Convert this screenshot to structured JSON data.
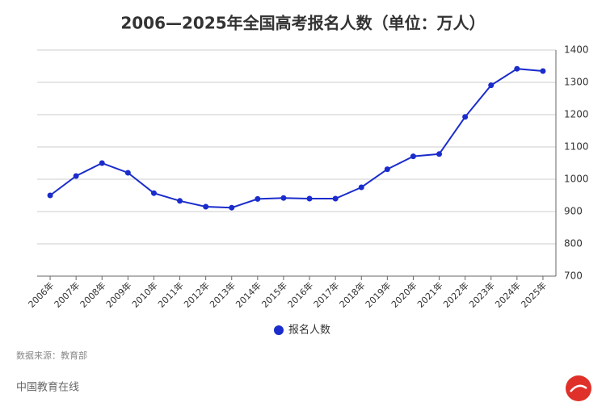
{
  "chart_data": {
    "type": "line",
    "title": "2006—2025年全国高考报名人数（单位：万人）",
    "categories": [
      "2006年",
      "2007年",
      "2008年",
      "2009年",
      "2010年",
      "2011年",
      "2012年",
      "2013年",
      "2014年",
      "2015年",
      "2016年",
      "2017年",
      "2018年",
      "2019年",
      "2020年",
      "2021年",
      "2022年",
      "2023年",
      "2024年",
      "2025年"
    ],
    "series": [
      {
        "name": "报名人数",
        "color": "#1a2ccc",
        "values": [
          950,
          1010,
          1050,
          1020,
          957,
          933,
          915,
          912,
          939,
          942,
          940,
          940,
          975,
          1031,
          1071,
          1078,
          1193,
          1291,
          1342,
          1335
        ]
      }
    ],
    "ylim": [
      700,
      1400
    ],
    "yticks": [
      700,
      800,
      900,
      1000,
      1100,
      1200,
      1300,
      1400
    ],
    "grid": true,
    "y_axis_side": "right",
    "legend": "bottom",
    "source": "数据来源：教育部",
    "footer": "中国教育在线"
  }
}
